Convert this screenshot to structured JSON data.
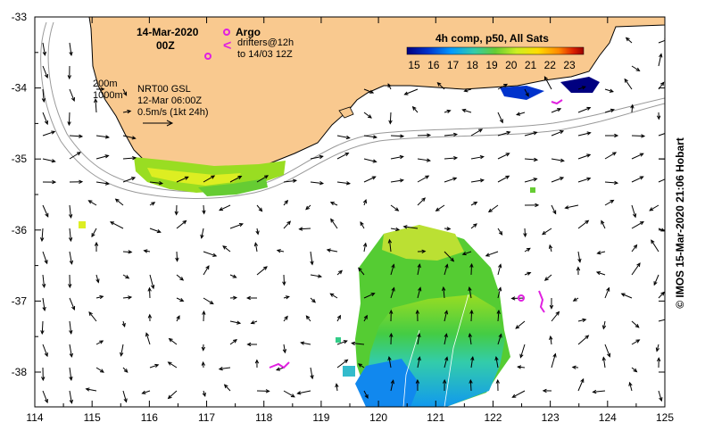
{
  "map": {
    "date": "14-Mar-2020",
    "hour": "00Z",
    "legend": {
      "argo_label": "Argo",
      "drifters_line1": "drifters@12h",
      "drifters_line2": "to 14/03 12Z",
      "argo_color": "#e020e0"
    },
    "contours": {
      "label_200": "200m",
      "label_1000": "1000m"
    },
    "currents": {
      "source": "NRT00 GSL",
      "time": "12-Mar 06:00Z",
      "scale": "0.5m/s (1kt 24h)"
    },
    "colorbar": {
      "title": "4h comp, p50, All Sats",
      "ticks": [
        "15",
        "16",
        "17",
        "18",
        "19",
        "20",
        "21",
        "22",
        "23"
      ],
      "stops": [
        "#000080",
        "#0033cc",
        "#0099ff",
        "#33ccaa",
        "#66cc33",
        "#ccee22",
        "#ffdd00",
        "#ff8800",
        "#dd2200",
        "#990000"
      ]
    },
    "x_ticks": [
      "114",
      "115",
      "116",
      "117",
      "118",
      "119",
      "120",
      "121",
      "122",
      "123",
      "124",
      "125"
    ],
    "y_ticks": [
      "-33",
      "-34",
      "-35",
      "-36",
      "-37",
      "-38"
    ],
    "land_color": "#f9c98f",
    "credit": "© IMOS 15-Mar-2020 21:06 Hobart"
  }
}
